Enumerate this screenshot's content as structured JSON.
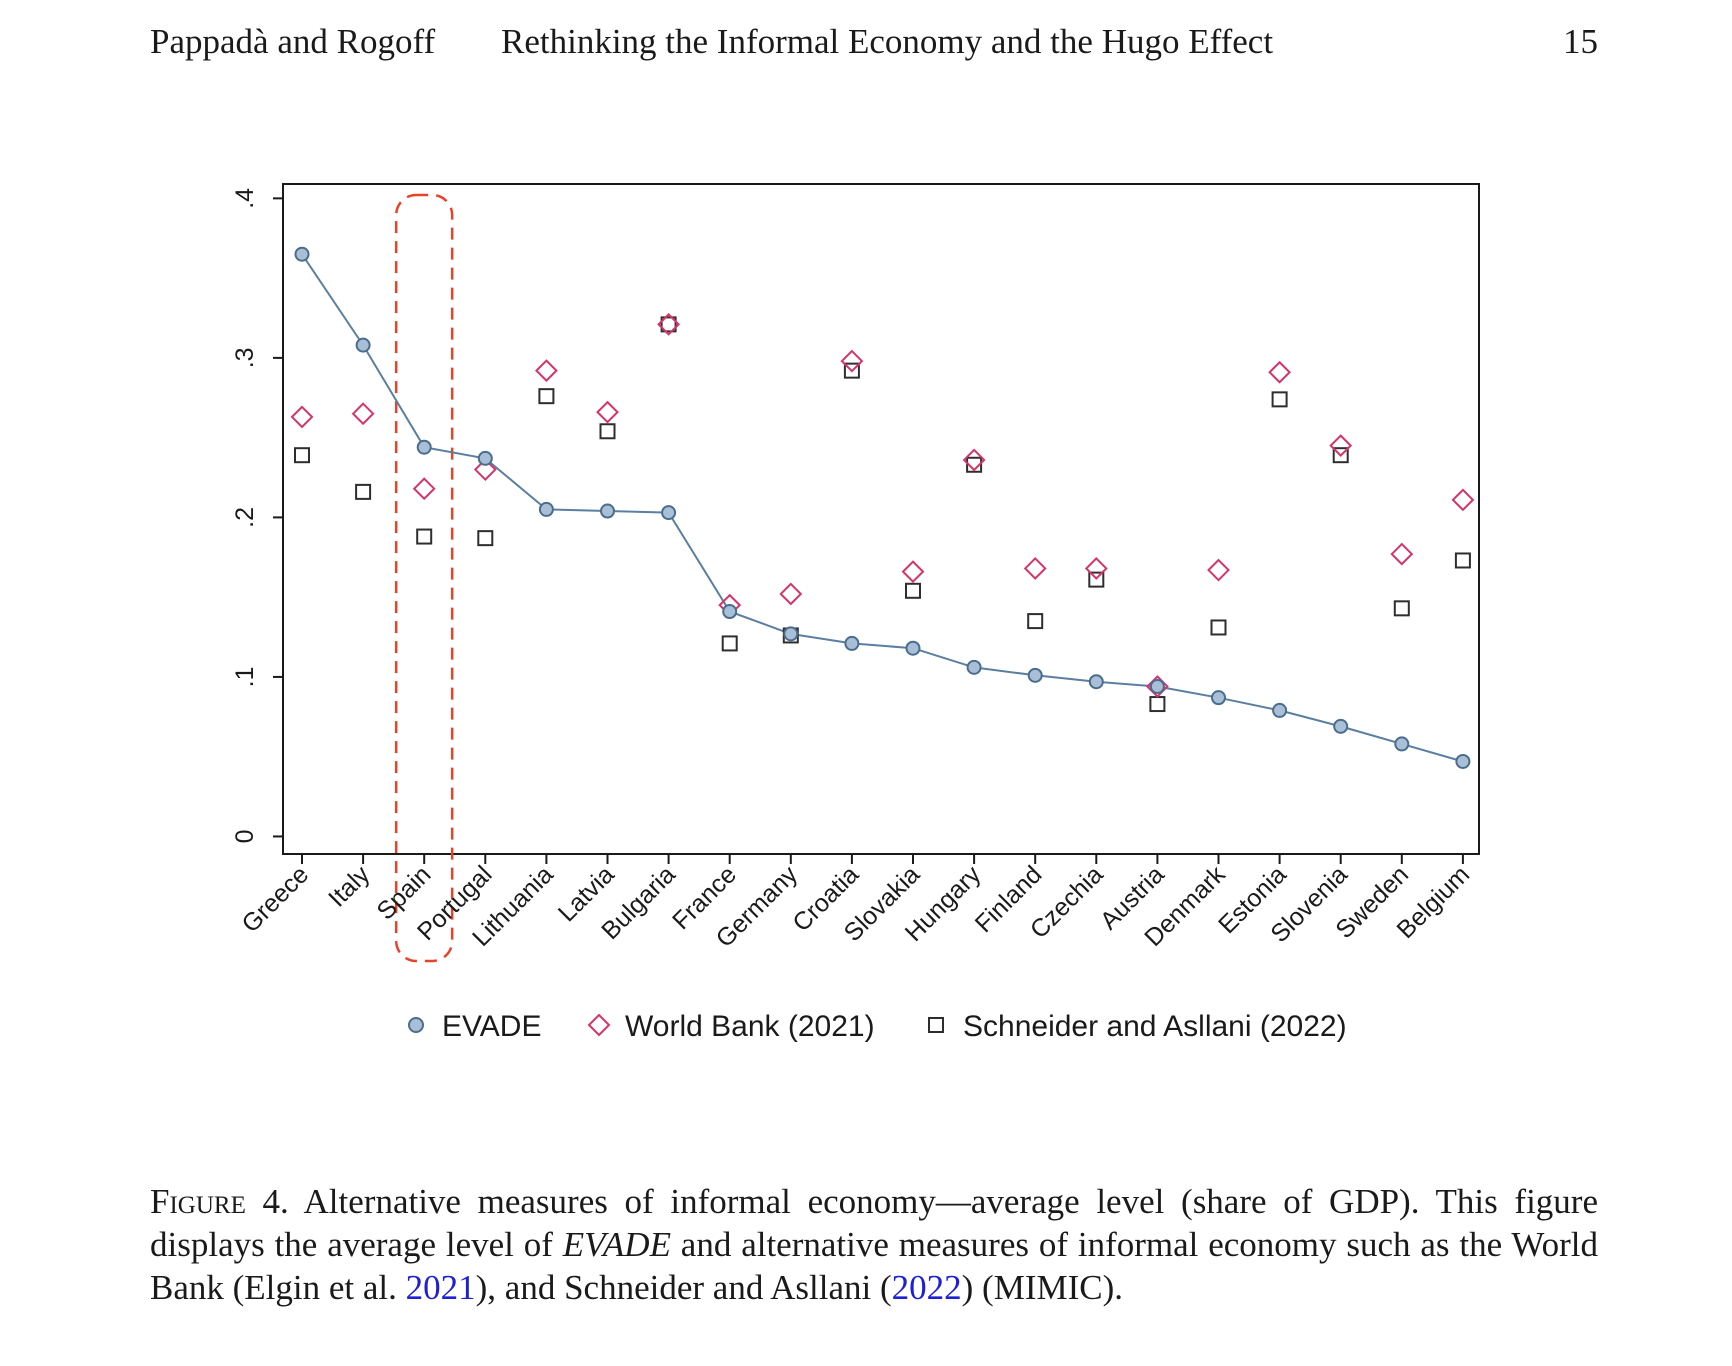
{
  "header": {
    "authors": "Pappadà and Rogoff",
    "title": "Rethinking the Informal Economy and the Hugo Effect",
    "page_number": "15"
  },
  "chart_data": {
    "type": "line",
    "categories": [
      "Greece",
      "Italy",
      "Spain",
      "Portugal",
      "Lithuania",
      "Latvia",
      "Bulgaria",
      "France",
      "Germany",
      "Croatia",
      "Slovakia",
      "Hungary",
      "Finland",
      "Czechia",
      "Austria",
      "Denmark",
      "Estonia",
      "Slovenia",
      "Sweden",
      "Belgium"
    ],
    "series": [
      {
        "name": "EVADE",
        "marker": "circle",
        "connected": true,
        "values": [
          0.365,
          0.308,
          0.244,
          0.237,
          0.205,
          0.204,
          0.203,
          0.141,
          0.127,
          0.121,
          0.118,
          0.106,
          0.101,
          0.097,
          0.094,
          0.087,
          0.079,
          0.069,
          0.058,
          0.047
        ]
      },
      {
        "name": "World Bank (2021)",
        "marker": "diamond",
        "connected": false,
        "values": [
          0.263,
          0.265,
          0.218,
          0.23,
          0.292,
          0.266,
          0.321,
          0.145,
          0.152,
          0.298,
          0.166,
          0.236,
          0.168,
          0.168,
          0.094,
          0.167,
          0.291,
          0.245,
          0.177,
          0.211
        ]
      },
      {
        "name": "Schneider and Asllani (2022)",
        "marker": "square",
        "connected": false,
        "values": [
          0.239,
          0.216,
          0.188,
          0.187,
          0.276,
          0.254,
          0.321,
          0.121,
          0.126,
          0.292,
          0.154,
          0.233,
          0.135,
          0.161,
          0.083,
          0.131,
          0.274,
          0.239,
          0.143,
          0.173
        ]
      }
    ],
    "yticks": [
      ".4",
      ".3",
      ".2",
      ".1",
      "0"
    ],
    "ytick_values": [
      0.4,
      0.3,
      0.2,
      0.1,
      0
    ],
    "ylim": [
      -0.011,
      0.409
    ],
    "highlight_category": "Spain",
    "legend_position": "bottom",
    "colors": {
      "evade_fill": "#a9bfd8",
      "evade_stroke": "#4a6d8c",
      "evade_line": "#5a7fa0",
      "world_bank": "#d6336c",
      "schneider": "#2e2e2e",
      "highlight": "#e8432a",
      "axis": "#1a1a1a"
    }
  },
  "caption": {
    "figure_label": "Figure 4.",
    "text_a": " Alternative measures of informal economy—average level (share of GDP). This figure displays the average level of ",
    "emph": "EVADE",
    "text_b": " and alternative measures of informal economy such as the World Bank (Elgin et al. ",
    "link1": "2021",
    "text_c": "), and Schneider and Asllani (",
    "link2": "2022",
    "text_d": ") (MIMIC)."
  }
}
